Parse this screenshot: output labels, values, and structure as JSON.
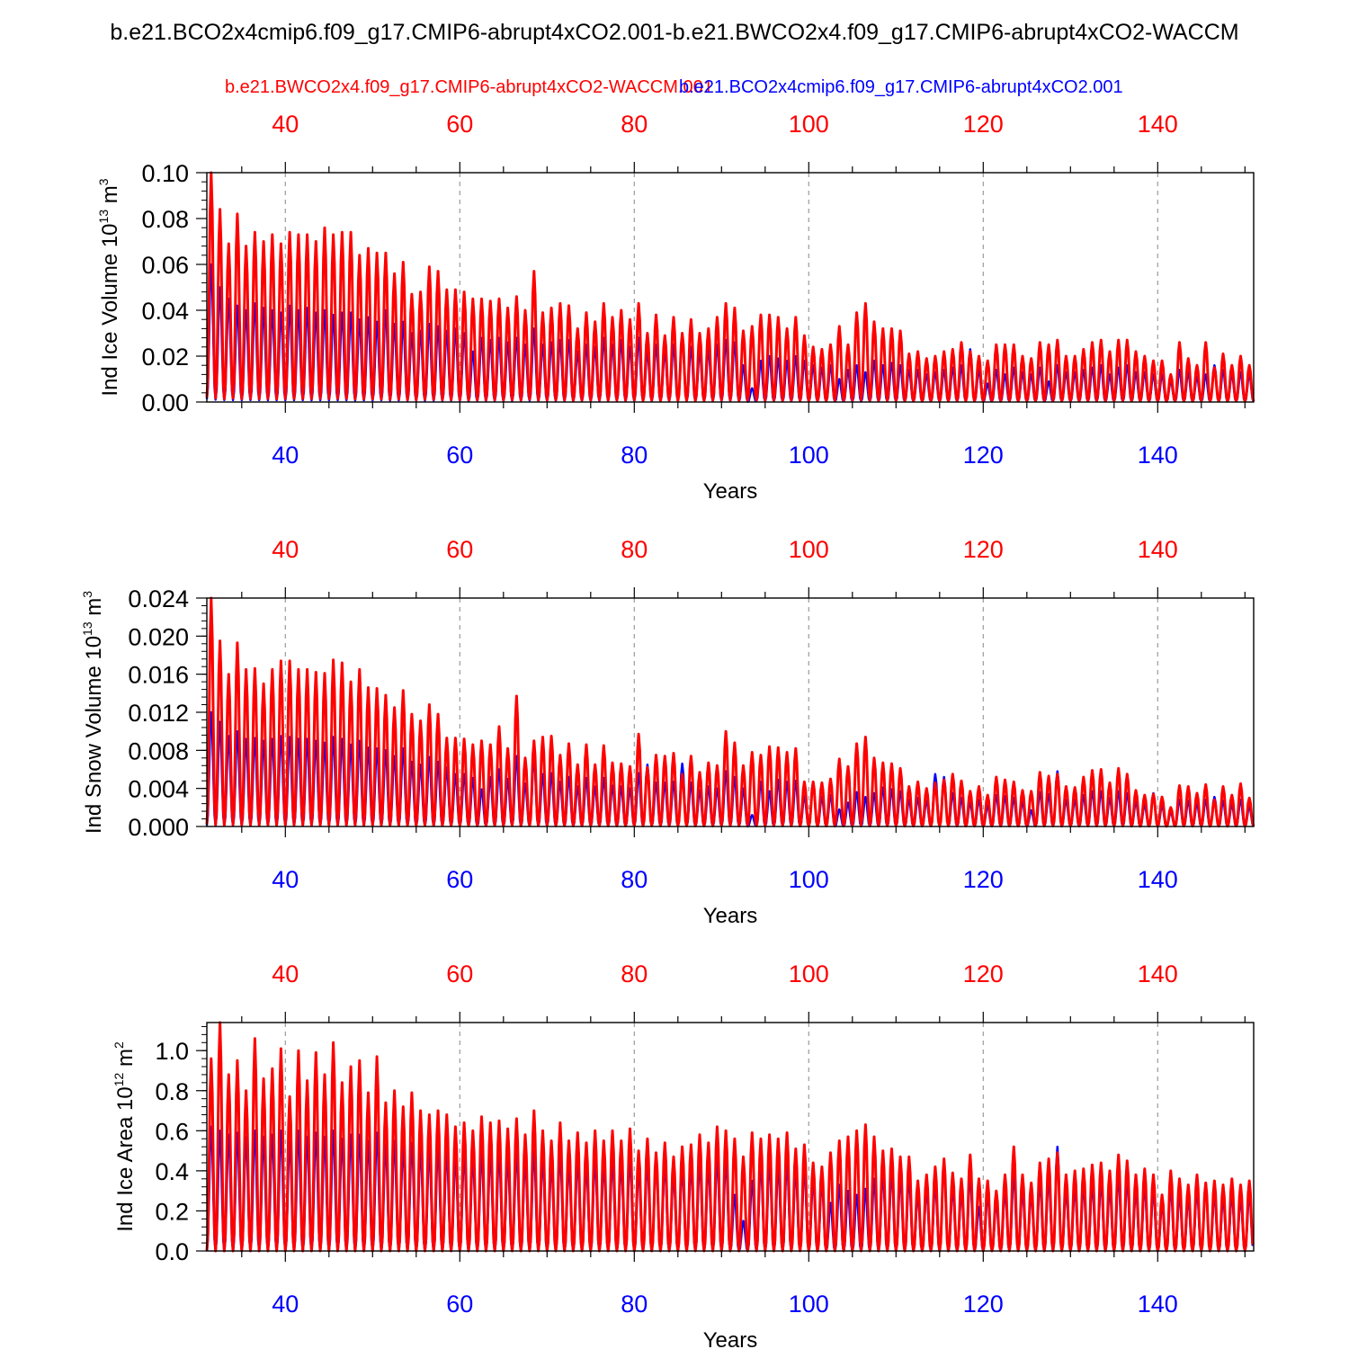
{
  "title": "b.e21.BCO2x4cmip6.f09_g17.CMIP6-abrupt4xCO2.001-b.e21.BWCO2x4.f09_g17.CMIP6-abrupt4xCO2-WACCM",
  "legend": {
    "red_case": "b.e21.BWCO2x4.f09_g17.CMIP6-abrupt4xCO2-WACCM.001",
    "blue_case": "b.e21.BCO2x4cmip6.f09_g17.CMIP6-abrupt4xCO2.001"
  },
  "colors": {
    "red": "#ff0000",
    "blue": "#0000ff",
    "axis": "#000000",
    "grid": "#9a9a9a"
  },
  "chart_data": [
    {
      "type": "line",
      "ylabel": "Ind Ice Volume 10",
      "ylabel_exp": "13",
      "ylabel_unit": " m",
      "ylabel_unit_exp": "3",
      "xlabel": "Years",
      "xlim": [
        31,
        151
      ],
      "ylim": [
        0,
        0.1
      ],
      "xticks": [
        40,
        60,
        80,
        100,
        120,
        140
      ],
      "ytick_labels": [
        "0.00",
        "0.02",
        "0.04",
        "0.06",
        "0.08",
        "0.10"
      ],
      "ytick_values": [
        0,
        0.02,
        0.04,
        0.06,
        0.08,
        0.1
      ],
      "series": [
        {
          "name": "b.e21.BWCO2x4.f09_g17.CMIP6-abrupt4xCO2-WACCM.001",
          "color": "red",
          "x_start": 31,
          "base_frac": 0.02,
          "peaks": [
            0.1,
            0.084,
            0.069,
            0.082,
            0.068,
            0.074,
            0.07,
            0.073,
            0.069,
            0.074,
            0.073,
            0.073,
            0.07,
            0.076,
            0.073,
            0.074,
            0.074,
            0.064,
            0.067,
            0.065,
            0.065,
            0.056,
            0.061,
            0.047,
            0.048,
            0.059,
            0.057,
            0.049,
            0.049,
            0.048,
            0.045,
            0.045,
            0.044,
            0.045,
            0.041,
            0.046,
            0.04,
            0.057,
            0.039,
            0.041,
            0.043,
            0.042,
            0.032,
            0.039,
            0.035,
            0.043,
            0.037,
            0.04,
            0.036,
            0.043,
            0.03,
            0.038,
            0.029,
            0.037,
            0.03,
            0.036,
            0.03,
            0.032,
            0.037,
            0.043,
            0.041,
            0.031,
            0.033,
            0.038,
            0.038,
            0.037,
            0.032,
            0.037,
            0.029,
            0.024,
            0.023,
            0.025,
            0.033,
            0.025,
            0.039,
            0.043,
            0.035,
            0.032,
            0.032,
            0.031,
            0.021,
            0.022,
            0.019,
            0.02,
            0.022,
            0.023,
            0.026,
            0.022,
            0.02,
            0.018,
            0.025,
            0.025,
            0.025,
            0.02,
            0.019,
            0.026,
            0.025,
            0.027,
            0.02,
            0.02,
            0.023,
            0.026,
            0.027,
            0.022,
            0.027,
            0.027,
            0.022,
            0.02,
            0.018,
            0.018,
            0.012,
            0.026,
            0.019,
            0.016,
            0.026,
            0.015,
            0.021,
            0.016,
            0.02,
            0.016,
            0.017
          ]
        },
        {
          "name": "b.e21.BCO2x4cmip6.f09_g17.CMIP6-abrupt4xCO2.001",
          "color": "blue",
          "x_start": 31,
          "base_frac": 0.02,
          "peaks": [
            0.06,
            0.05,
            0.045,
            0.042,
            0.04,
            0.043,
            0.041,
            0.04,
            0.039,
            0.042,
            0.04,
            0.041,
            0.039,
            0.04,
            0.038,
            0.039,
            0.039,
            0.036,
            0.037,
            0.035,
            0.04,
            0.034,
            0.035,
            0.03,
            0.031,
            0.034,
            0.033,
            0.031,
            0.032,
            0.03,
            0.022,
            0.028,
            0.027,
            0.028,
            0.026,
            0.028,
            0.025,
            0.032,
            0.025,
            0.026,
            0.027,
            0.027,
            0.022,
            0.025,
            0.024,
            0.028,
            0.025,
            0.027,
            0.024,
            0.028,
            0.022,
            0.025,
            0.022,
            0.025,
            0.029,
            0.024,
            0.022,
            0.023,
            0.025,
            0.027,
            0.026,
            0.016,
            0.006,
            0.018,
            0.02,
            0.019,
            0.018,
            0.02,
            0.018,
            0.016,
            0.015,
            0.016,
            0.01,
            0.014,
            0.016,
            0.013,
            0.018,
            0.016,
            0.017,
            0.016,
            0.014,
            0.014,
            0.012,
            0.013,
            0.014,
            0.015,
            0.016,
            0.023,
            0.014,
            0.008,
            0.014,
            0.012,
            0.015,
            0.013,
            0.012,
            0.015,
            0.009,
            0.016,
            0.013,
            0.013,
            0.014,
            0.015,
            0.016,
            0.012,
            0.015,
            0.016,
            0.013,
            0.013,
            0.012,
            0.012,
            0.009,
            0.014,
            0.013,
            0.011,
            0.012,
            0.016,
            0.014,
            0.012,
            0.013,
            0.012,
            0.01
          ]
        }
      ]
    },
    {
      "type": "line",
      "ylabel": "Ind Snow Volume 10",
      "ylabel_exp": "13",
      "ylabel_unit": " m",
      "ylabel_unit_exp": "3",
      "xlabel": "Years",
      "xlim": [
        31,
        151
      ],
      "ylim": [
        0,
        0.024
      ],
      "xticks": [
        40,
        60,
        80,
        100,
        120,
        140
      ],
      "ytick_labels": [
        "0.000",
        "0.004",
        "0.008",
        "0.012",
        "0.016",
        "0.020",
        "0.024"
      ],
      "ytick_values": [
        0,
        0.004,
        0.008,
        0.012,
        0.016,
        0.02,
        0.024
      ],
      "series": [
        {
          "name": "b.e21.BWCO2x4.f09_g17.CMIP6-abrupt4xCO2-WACCM.001",
          "color": "red",
          "x_start": 31,
          "base_frac": 0.01,
          "peaks": [
            0.024,
            0.0195,
            0.016,
            0.0193,
            0.0165,
            0.0166,
            0.015,
            0.0165,
            0.0174,
            0.0174,
            0.0165,
            0.0165,
            0.0162,
            0.0161,
            0.0175,
            0.0172,
            0.0152,
            0.0165,
            0.0146,
            0.0145,
            0.0138,
            0.0125,
            0.0143,
            0.0118,
            0.0111,
            0.0128,
            0.0118,
            0.0093,
            0.0093,
            0.0092,
            0.0086,
            0.009,
            0.0086,
            0.0105,
            0.0082,
            0.0137,
            0.0072,
            0.009,
            0.0094,
            0.0095,
            0.0075,
            0.0087,
            0.0065,
            0.0086,
            0.0065,
            0.0085,
            0.0067,
            0.0066,
            0.0063,
            0.0097,
            0.0062,
            0.0075,
            0.0074,
            0.0077,
            0.0055,
            0.0074,
            0.0057,
            0.0067,
            0.0064,
            0.01,
            0.0088,
            0.0064,
            0.0078,
            0.0075,
            0.0084,
            0.0083,
            0.0078,
            0.0082,
            0.0047,
            0.0047,
            0.0046,
            0.005,
            0.0071,
            0.0063,
            0.0087,
            0.0094,
            0.0072,
            0.0067,
            0.0066,
            0.0061,
            0.0042,
            0.0047,
            0.004,
            0.0046,
            0.0049,
            0.0055,
            0.0048,
            0.0037,
            0.0042,
            0.0033,
            0.0052,
            0.0049,
            0.0047,
            0.0038,
            0.0037,
            0.0057,
            0.0053,
            0.0055,
            0.0042,
            0.0041,
            0.0052,
            0.0059,
            0.006,
            0.0046,
            0.0061,
            0.0055,
            0.0038,
            0.0033,
            0.0034,
            0.0031,
            0.002,
            0.0043,
            0.0042,
            0.0035,
            0.0044,
            0.0028,
            0.0042,
            0.0033,
            0.0045,
            0.003,
            0.0031
          ]
        },
        {
          "name": "b.e21.BCO2x4cmip6.f09_g17.CMIP6-abrupt4xCO2.001",
          "color": "blue",
          "x_start": 31,
          "base_frac": 0.01,
          "peaks": [
            0.012,
            0.011,
            0.0095,
            0.01,
            0.0092,
            0.0093,
            0.009,
            0.0092,
            0.0095,
            0.0094,
            0.0092,
            0.0092,
            0.009,
            0.0088,
            0.0094,
            0.0092,
            0.0086,
            0.009,
            0.0083,
            0.0082,
            0.008,
            0.0074,
            0.0082,
            0.0068,
            0.0065,
            0.0073,
            0.0068,
            0.0062,
            0.0055,
            0.0055,
            0.0051,
            0.0039,
            0.0052,
            0.006,
            0.005,
            0.0074,
            0.0045,
            0.0072,
            0.0055,
            0.0056,
            0.0047,
            0.0052,
            0.0042,
            0.0051,
            0.0042,
            0.0051,
            0.0043,
            0.0042,
            0.004,
            0.0056,
            0.0065,
            0.0046,
            0.0046,
            0.0047,
            0.0066,
            0.0046,
            0.0038,
            0.0042,
            0.004,
            0.0058,
            0.0052,
            0.004,
            0.0012,
            0.0047,
            0.0037,
            0.0049,
            0.0047,
            0.0048,
            0.0032,
            0.0047,
            0.0031,
            0.0033,
            0.0018,
            0.0025,
            0.0036,
            0.0031,
            0.0035,
            0.0041,
            0.0039,
            0.0037,
            0.0028,
            0.003,
            0.0027,
            0.0055,
            0.0052,
            0.0035,
            0.003,
            0.0025,
            0.0028,
            0.0022,
            0.0033,
            0.0032,
            0.003,
            0.0026,
            0.0017,
            0.0036,
            0.0034,
            0.0058,
            0.0028,
            0.0028,
            0.0033,
            0.0037,
            0.0037,
            0.003,
            0.0037,
            0.0035,
            0.0026,
            0.0023,
            0.0035,
            0.0022,
            0.0015,
            0.0028,
            0.0027,
            0.0024,
            0.0028,
            0.0031,
            0.0027,
            0.0023,
            0.0028,
            0.0021,
            0.003
          ]
        }
      ]
    },
    {
      "type": "line",
      "ylabel": "Ind Ice Area 10",
      "ylabel_exp": "12",
      "ylabel_unit": " m",
      "ylabel_unit_exp": "2",
      "xlabel": "Years",
      "xlim": [
        31,
        151
      ],
      "ylim": [
        0,
        1.14
      ],
      "xticks": [
        40,
        60,
        80,
        100,
        120,
        140
      ],
      "ytick_labels": [
        "0.0",
        "0.2",
        "0.4",
        "0.6",
        "0.8",
        "1.0"
      ],
      "ytick_values": [
        0,
        0.2,
        0.4,
        0.6,
        0.8,
        1.0
      ],
      "series": [
        {
          "name": "b.e21.BWCO2x4.f09_g17.CMIP6-abrupt4xCO2-WACCM.001",
          "color": "red",
          "x_start": 31,
          "base_frac": 0.0,
          "peaks": [
            0.96,
            1.14,
            0.88,
            0.95,
            0.8,
            1.06,
            0.86,
            0.91,
            1.01,
            0.77,
            1.0,
            0.85,
            0.99,
            0.88,
            1.04,
            0.84,
            0.92,
            0.95,
            0.79,
            0.97,
            0.74,
            0.8,
            0.72,
            0.79,
            0.7,
            0.68,
            0.7,
            0.68,
            0.62,
            0.64,
            0.6,
            0.67,
            0.64,
            0.65,
            0.61,
            0.66,
            0.58,
            0.7,
            0.6,
            0.55,
            0.64,
            0.55,
            0.59,
            0.54,
            0.6,
            0.55,
            0.6,
            0.55,
            0.61,
            0.5,
            0.56,
            0.49,
            0.54,
            0.47,
            0.52,
            0.53,
            0.58,
            0.54,
            0.62,
            0.6,
            0.56,
            0.47,
            0.59,
            0.56,
            0.58,
            0.56,
            0.59,
            0.51,
            0.53,
            0.44,
            0.42,
            0.49,
            0.55,
            0.57,
            0.6,
            0.63,
            0.57,
            0.5,
            0.51,
            0.47,
            0.47,
            0.35,
            0.38,
            0.42,
            0.46,
            0.39,
            0.36,
            0.48,
            0.36,
            0.35,
            0.3,
            0.38,
            0.52,
            0.38,
            0.34,
            0.44,
            0.46,
            0.49,
            0.38,
            0.4,
            0.41,
            0.43,
            0.44,
            0.4,
            0.48,
            0.45,
            0.38,
            0.41,
            0.38,
            0.28,
            0.4,
            0.36,
            0.33,
            0.38,
            0.34,
            0.35,
            0.33,
            0.36,
            0.33,
            0.35
          ]
        },
        {
          "name": "b.e21.BCO2x4cmip6.f09_g17.CMIP6-abrupt4xCO2.001",
          "color": "blue",
          "x_start": 31,
          "base_frac": 0.0,
          "peaks": [
            0.62,
            0.6,
            0.58,
            0.59,
            0.57,
            0.6,
            0.57,
            0.58,
            0.6,
            0.55,
            0.6,
            0.57,
            0.59,
            0.57,
            0.6,
            0.56,
            0.58,
            0.58,
            0.55,
            0.59,
            0.53,
            0.55,
            0.52,
            0.54,
            0.51,
            0.5,
            0.51,
            0.5,
            0.47,
            0.48,
            0.46,
            0.49,
            0.48,
            0.48,
            0.46,
            0.49,
            0.45,
            0.5,
            0.46,
            0.43,
            0.48,
            0.43,
            0.45,
            0.42,
            0.45,
            0.43,
            0.45,
            0.43,
            0.46,
            0.4,
            0.44,
            0.45,
            0.43,
            0.38,
            0.41,
            0.42,
            0.44,
            0.42,
            0.46,
            0.45,
            0.28,
            0.15,
            0.35,
            0.43,
            0.44,
            0.42,
            0.44,
            0.4,
            0.41,
            0.35,
            0.34,
            0.24,
            0.33,
            0.3,
            0.28,
            0.31,
            0.36,
            0.38,
            0.39,
            0.36,
            0.36,
            0.28,
            0.3,
            0.33,
            0.44,
            0.31,
            0.29,
            0.37,
            0.22,
            0.28,
            0.24,
            0.3,
            0.38,
            0.3,
            0.28,
            0.34,
            0.36,
            0.52,
            0.3,
            0.31,
            0.32,
            0.33,
            0.34,
            0.31,
            0.37,
            0.35,
            0.3,
            0.32,
            0.3,
            0.23,
            0.31,
            0.28,
            0.26,
            0.3,
            0.34,
            0.28,
            0.26,
            0.28,
            0.26,
            0.28
          ]
        }
      ]
    }
  ]
}
